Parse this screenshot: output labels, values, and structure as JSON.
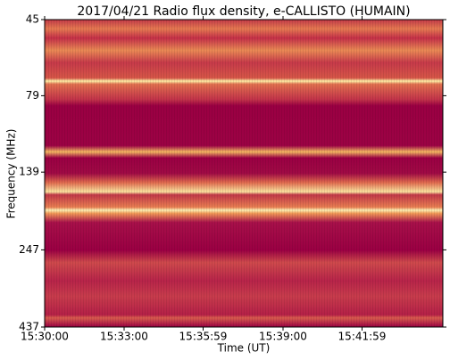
{
  "chart_data": {
    "type": "spectrogram",
    "title": "2017/04/21  Radio flux density, e-CALLISTO (HUMAIN)",
    "xlabel": "Time (UT)",
    "ylabel": "Frequency (MHz)",
    "xlim": [
      "15:30:00",
      "15:45:02"
    ],
    "xticks": [
      "15:30:00",
      "15:33:00",
      "15:35:59",
      "15:39:00",
      "15:41:59"
    ],
    "ylim": [
      45,
      437
    ],
    "yticks": [
      45,
      79,
      139,
      247,
      437
    ],
    "ylog": true,
    "yinverted": true
  }
}
